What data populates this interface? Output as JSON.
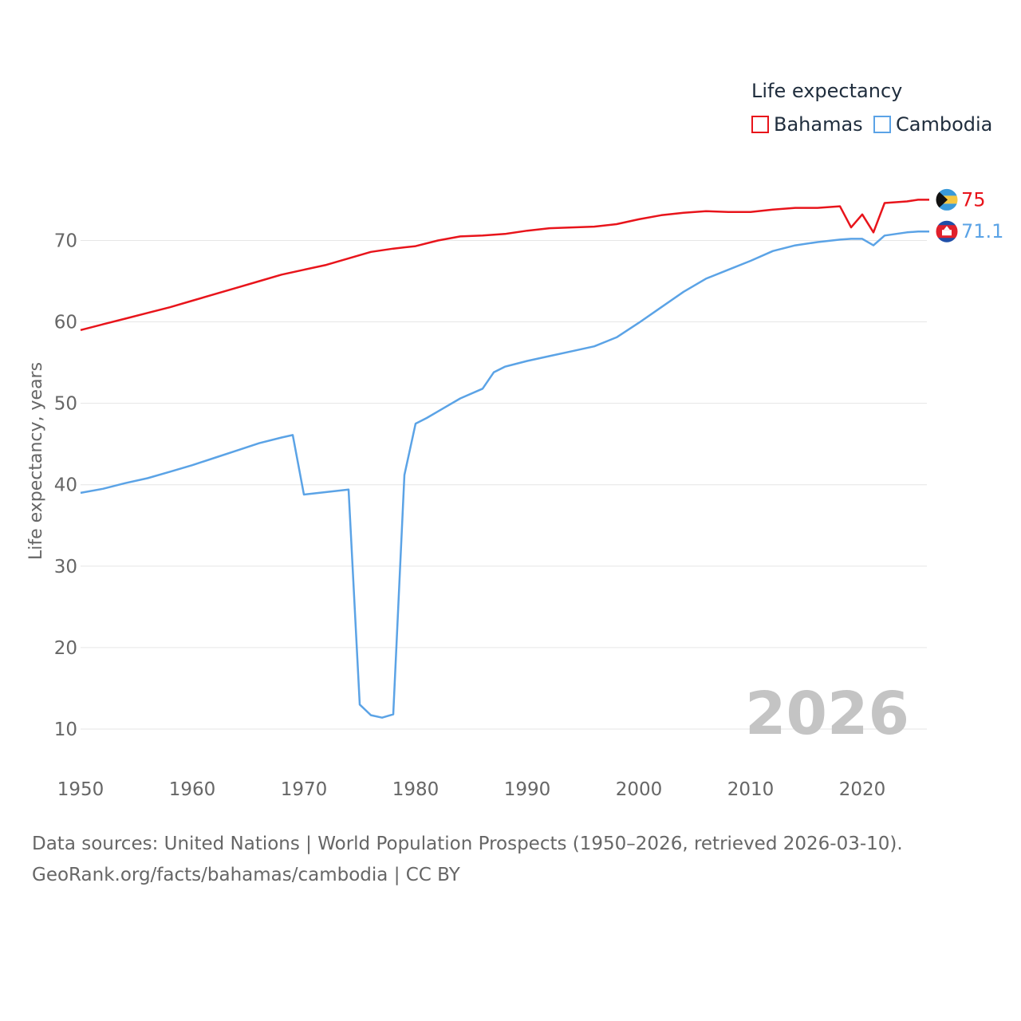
{
  "chart_data": {
    "type": "line",
    "ylabel": "Life expectancy, years",
    "legend_title": "Life expectancy",
    "watermark_year": "2026",
    "xlim": [
      1950,
      2026
    ],
    "ylim": [
      5,
      77
    ],
    "x_ticks": [
      "1950",
      "1960",
      "1970",
      "1980",
      "1990",
      "2000",
      "2010",
      "2020"
    ],
    "y_ticks": [
      "10",
      "20",
      "30",
      "40",
      "50",
      "60",
      "70"
    ],
    "series": [
      {
        "name": "Bahamas",
        "color": "#e8141b",
        "end_label": "75",
        "flag": "bahamas-flag-icon",
        "x": [
          1950,
          1952,
          1954,
          1956,
          1958,
          1960,
          1962,
          1964,
          1966,
          1968,
          1970,
          1972,
          1974,
          1976,
          1978,
          1980,
          1982,
          1984,
          1986,
          1988,
          1990,
          1992,
          1994,
          1996,
          1998,
          2000,
          2002,
          2004,
          2006,
          2008,
          2010,
          2012,
          2014,
          2015,
          2016,
          2017,
          2018,
          2019,
          2020,
          2021,
          2022,
          2024,
          2025,
          2026
        ],
        "values": [
          59.0,
          59.7,
          60.4,
          61.1,
          61.8,
          62.6,
          63.4,
          64.2,
          65.0,
          65.8,
          66.4,
          67.0,
          67.8,
          68.6,
          69.0,
          69.3,
          70.0,
          70.5,
          70.6,
          70.8,
          71.2,
          71.5,
          71.6,
          71.7,
          72.0,
          72.6,
          73.1,
          73.4,
          73.6,
          73.5,
          73.5,
          73.8,
          74.0,
          74.0,
          74.0,
          74.1,
          74.2,
          71.6,
          73.2,
          71.0,
          74.6,
          74.8,
          75.0,
          75.0
        ]
      },
      {
        "name": "Cambodia",
        "color": "#5ba3e6",
        "end_label": "71.1",
        "flag": "cambodia-flag-icon",
        "x": [
          1950,
          1952,
          1954,
          1956,
          1958,
          1960,
          1962,
          1964,
          1966,
          1968,
          1969,
          1970,
          1972,
          1974,
          1975,
          1976,
          1977,
          1978,
          1979,
          1980,
          1981,
          1982,
          1984,
          1986,
          1987,
          1988,
          1990,
          1992,
          1994,
          1996,
          1998,
          2000,
          2002,
          2004,
          2006,
          2008,
          2010,
          2012,
          2014,
          2016,
          2018,
          2019,
          2020,
          2021,
          2022,
          2024,
          2025,
          2026
        ],
        "values": [
          39.0,
          39.5,
          40.2,
          40.8,
          41.6,
          42.4,
          43.3,
          44.2,
          45.1,
          45.8,
          46.1,
          38.8,
          39.1,
          39.4,
          13.0,
          11.7,
          11.4,
          11.8,
          41.2,
          47.5,
          48.2,
          49.0,
          50.6,
          51.8,
          53.8,
          54.5,
          55.2,
          55.8,
          56.4,
          57.0,
          58.1,
          59.9,
          61.8,
          63.7,
          65.3,
          66.4,
          67.5,
          68.7,
          69.4,
          69.8,
          70.1,
          70.2,
          70.2,
          69.4,
          70.6,
          71.0,
          71.1,
          71.1
        ]
      }
    ]
  },
  "source_line1": "Data sources: United Nations | World Population Prospects (1950–2026, retrieved 2026-03-10).",
  "source_line2": "GeoRank.org/facts/bahamas/cambodia | CC BY"
}
